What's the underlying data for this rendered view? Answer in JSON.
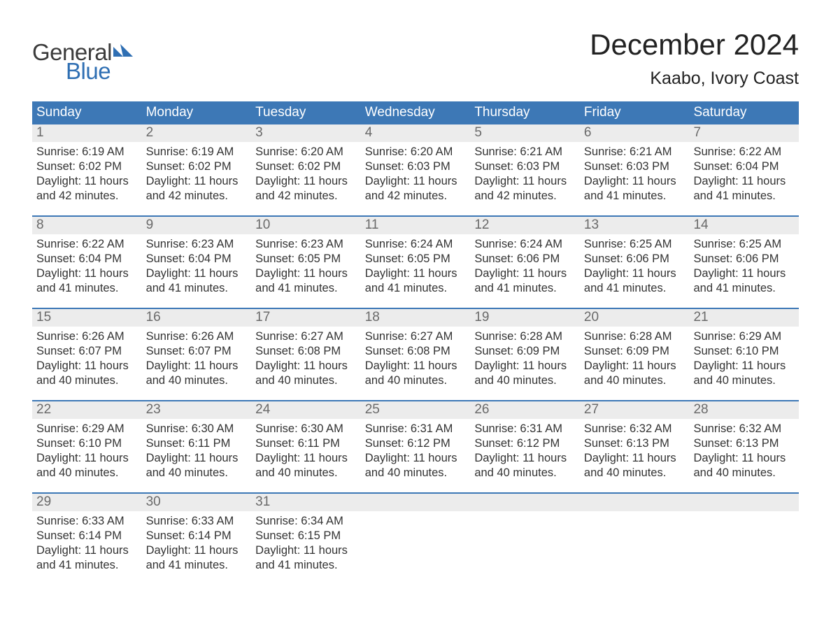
{
  "logo": {
    "word1": "General",
    "word2": "Blue",
    "flag_color": "#2f6fb3"
  },
  "title": "December 2024",
  "location": "Kaabo, Ivory Coast",
  "colors": {
    "header_bg": "#3d78b6",
    "header_text": "#ffffff",
    "daynum_bg": "#ececec",
    "daynum_text": "#6a6a6a",
    "body_text": "#333333",
    "week_border": "#3d78b6"
  },
  "day_names": [
    "Sunday",
    "Monday",
    "Tuesday",
    "Wednesday",
    "Thursday",
    "Friday",
    "Saturday"
  ],
  "weeks": [
    [
      {
        "n": "1",
        "sunrise": "6:19 AM",
        "sunset": "6:02 PM",
        "daylight": "11 hours and 42 minutes."
      },
      {
        "n": "2",
        "sunrise": "6:19 AM",
        "sunset": "6:02 PM",
        "daylight": "11 hours and 42 minutes."
      },
      {
        "n": "3",
        "sunrise": "6:20 AM",
        "sunset": "6:02 PM",
        "daylight": "11 hours and 42 minutes."
      },
      {
        "n": "4",
        "sunrise": "6:20 AM",
        "sunset": "6:03 PM",
        "daylight": "11 hours and 42 minutes."
      },
      {
        "n": "5",
        "sunrise": "6:21 AM",
        "sunset": "6:03 PM",
        "daylight": "11 hours and 42 minutes."
      },
      {
        "n": "6",
        "sunrise": "6:21 AM",
        "sunset": "6:03 PM",
        "daylight": "11 hours and 41 minutes."
      },
      {
        "n": "7",
        "sunrise": "6:22 AM",
        "sunset": "6:04 PM",
        "daylight": "11 hours and 41 minutes."
      }
    ],
    [
      {
        "n": "8",
        "sunrise": "6:22 AM",
        "sunset": "6:04 PM",
        "daylight": "11 hours and 41 minutes."
      },
      {
        "n": "9",
        "sunrise": "6:23 AM",
        "sunset": "6:04 PM",
        "daylight": "11 hours and 41 minutes."
      },
      {
        "n": "10",
        "sunrise": "6:23 AM",
        "sunset": "6:05 PM",
        "daylight": "11 hours and 41 minutes."
      },
      {
        "n": "11",
        "sunrise": "6:24 AM",
        "sunset": "6:05 PM",
        "daylight": "11 hours and 41 minutes."
      },
      {
        "n": "12",
        "sunrise": "6:24 AM",
        "sunset": "6:06 PM",
        "daylight": "11 hours and 41 minutes."
      },
      {
        "n": "13",
        "sunrise": "6:25 AM",
        "sunset": "6:06 PM",
        "daylight": "11 hours and 41 minutes."
      },
      {
        "n": "14",
        "sunrise": "6:25 AM",
        "sunset": "6:06 PM",
        "daylight": "11 hours and 41 minutes."
      }
    ],
    [
      {
        "n": "15",
        "sunrise": "6:26 AM",
        "sunset": "6:07 PM",
        "daylight": "11 hours and 40 minutes."
      },
      {
        "n": "16",
        "sunrise": "6:26 AM",
        "sunset": "6:07 PM",
        "daylight": "11 hours and 40 minutes."
      },
      {
        "n": "17",
        "sunrise": "6:27 AM",
        "sunset": "6:08 PM",
        "daylight": "11 hours and 40 minutes."
      },
      {
        "n": "18",
        "sunrise": "6:27 AM",
        "sunset": "6:08 PM",
        "daylight": "11 hours and 40 minutes."
      },
      {
        "n": "19",
        "sunrise": "6:28 AM",
        "sunset": "6:09 PM",
        "daylight": "11 hours and 40 minutes."
      },
      {
        "n": "20",
        "sunrise": "6:28 AM",
        "sunset": "6:09 PM",
        "daylight": "11 hours and 40 minutes."
      },
      {
        "n": "21",
        "sunrise": "6:29 AM",
        "sunset": "6:10 PM",
        "daylight": "11 hours and 40 minutes."
      }
    ],
    [
      {
        "n": "22",
        "sunrise": "6:29 AM",
        "sunset": "6:10 PM",
        "daylight": "11 hours and 40 minutes."
      },
      {
        "n": "23",
        "sunrise": "6:30 AM",
        "sunset": "6:11 PM",
        "daylight": "11 hours and 40 minutes."
      },
      {
        "n": "24",
        "sunrise": "6:30 AM",
        "sunset": "6:11 PM",
        "daylight": "11 hours and 40 minutes."
      },
      {
        "n": "25",
        "sunrise": "6:31 AM",
        "sunset": "6:12 PM",
        "daylight": "11 hours and 40 minutes."
      },
      {
        "n": "26",
        "sunrise": "6:31 AM",
        "sunset": "6:12 PM",
        "daylight": "11 hours and 40 minutes."
      },
      {
        "n": "27",
        "sunrise": "6:32 AM",
        "sunset": "6:13 PM",
        "daylight": "11 hours and 40 minutes."
      },
      {
        "n": "28",
        "sunrise": "6:32 AM",
        "sunset": "6:13 PM",
        "daylight": "11 hours and 40 minutes."
      }
    ],
    [
      {
        "n": "29",
        "sunrise": "6:33 AM",
        "sunset": "6:14 PM",
        "daylight": "11 hours and 41 minutes."
      },
      {
        "n": "30",
        "sunrise": "6:33 AM",
        "sunset": "6:14 PM",
        "daylight": "11 hours and 41 minutes."
      },
      {
        "n": "31",
        "sunrise": "6:34 AM",
        "sunset": "6:15 PM",
        "daylight": "11 hours and 41 minutes."
      },
      {
        "n": "",
        "sunrise": "",
        "sunset": "",
        "daylight": "",
        "empty": true
      },
      {
        "n": "",
        "sunrise": "",
        "sunset": "",
        "daylight": "",
        "empty": true
      },
      {
        "n": "",
        "sunrise": "",
        "sunset": "",
        "daylight": "",
        "empty": true
      },
      {
        "n": "",
        "sunrise": "",
        "sunset": "",
        "daylight": "",
        "empty": true
      }
    ]
  ],
  "labels": {
    "sunrise_prefix": "Sunrise: ",
    "sunset_prefix": "Sunset: ",
    "daylight_prefix": "Daylight: "
  }
}
